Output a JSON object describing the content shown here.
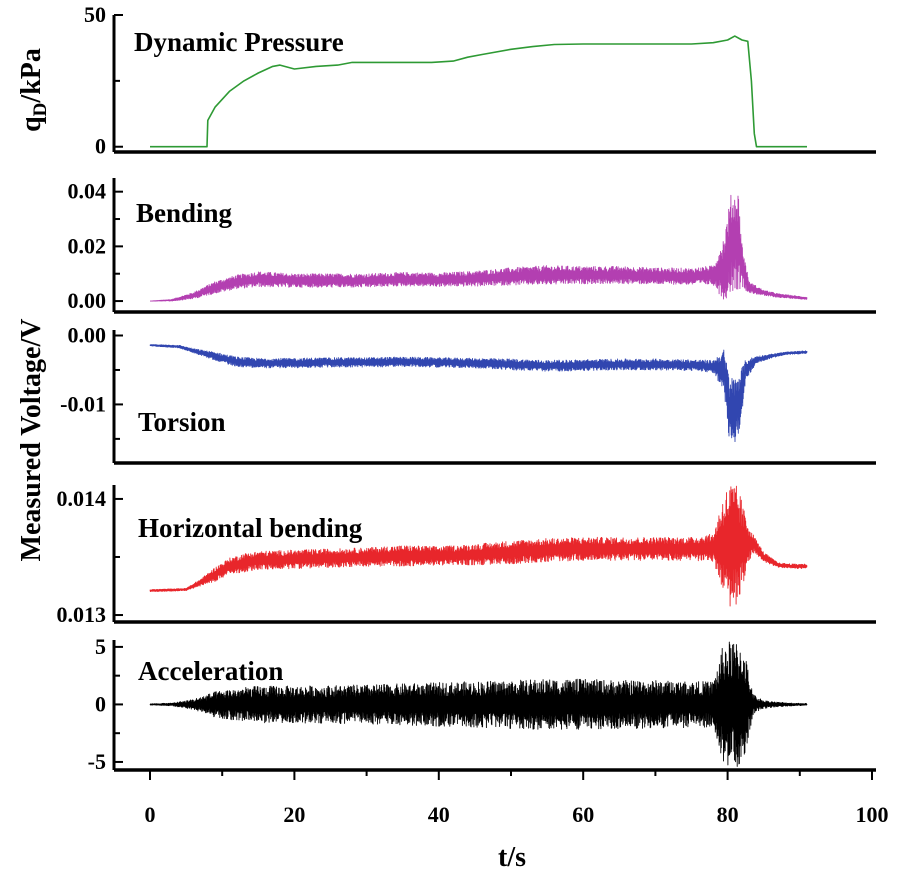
{
  "figure": {
    "ylabel_shared": "Measured Voltage/V",
    "xlabel": "t/s"
  },
  "chart_data": [
    {
      "type": "line",
      "panel": "dynamic-pressure",
      "title": "Dynamic Pressure",
      "ylabel": "q_D/kPa",
      "ylabel_main": "q",
      "ylabel_sub": "D",
      "ylabel_rest": "/kPa",
      "xlim": [
        0,
        100
      ],
      "ylim": [
        -2,
        50
      ],
      "yticks": [
        0,
        50
      ],
      "ytick_labels": [
        "0",
        "50"
      ],
      "color": "#2e9a34",
      "series": [
        {
          "name": "Dynamic Pressure",
          "x": [
            0,
            7.9,
            8,
            9,
            11,
            13,
            15,
            17,
            18,
            20,
            23,
            26,
            28,
            33,
            36,
            39,
            42,
            44,
            46,
            50,
            53,
            56,
            60,
            65,
            70,
            75,
            78,
            80,
            81,
            82,
            82.8,
            83.3,
            83.7,
            84,
            85,
            91
          ],
          "y": [
            0,
            0,
            10,
            15,
            21,
            25,
            28,
            30.5,
            31,
            29.5,
            30.5,
            31,
            32,
            32,
            32,
            32,
            32.5,
            34,
            35,
            37,
            38,
            38.8,
            39,
            39,
            39,
            39,
            39.5,
            40.5,
            42,
            40.5,
            40,
            25,
            5,
            0,
            0,
            0
          ]
        }
      ]
    },
    {
      "type": "line",
      "panel": "bending",
      "title": "Bending",
      "xlim": [
        0,
        100
      ],
      "ylim": [
        -0.004,
        0.045
      ],
      "yticks": [
        0,
        0.02,
        0.04
      ],
      "ytick_labels": [
        "0.00",
        "0.02",
        "0.04"
      ],
      "color": "#b33fb1",
      "series": [
        {
          "name": "Bending",
          "x": [
            0,
            3,
            6,
            9,
            12,
            15,
            20,
            25,
            30,
            35,
            40,
            45,
            50,
            55,
            60,
            65,
            70,
            75,
            78,
            79.5,
            80.5,
            81.5,
            82,
            83,
            85,
            87,
            91
          ],
          "y": [
            0,
            0.0003,
            0.002,
            0.005,
            0.007,
            0.008,
            0.0075,
            0.0075,
            0.0075,
            0.008,
            0.0078,
            0.0082,
            0.009,
            0.0095,
            0.0095,
            0.0095,
            0.0092,
            0.009,
            0.0095,
            0.012,
            0.0215,
            0.022,
            0.013,
            0.005,
            0.003,
            0.002,
            0.001
          ],
          "noise": [
            0,
            0.0003,
            0.0012,
            0.0022,
            0.0025,
            0.0028,
            0.0025,
            0.0025,
            0.0025,
            0.0025,
            0.0025,
            0.0028,
            0.0032,
            0.0035,
            0.0032,
            0.0032,
            0.003,
            0.003,
            0.0035,
            0.012,
            0.018,
            0.018,
            0.008,
            0.002,
            0.001,
            0.0007,
            0.0004
          ]
        }
      ]
    },
    {
      "type": "line",
      "panel": "torsion",
      "title": "Torsion",
      "xlim": [
        0,
        100
      ],
      "ylim": [
        -0.0185,
        0.0008
      ],
      "yticks": [
        0,
        -0.01
      ],
      "ytick_labels": [
        "0.00",
        "-0.01"
      ],
      "color": "#3146b0",
      "series": [
        {
          "name": "Torsion",
          "x": [
            0,
            4,
            6,
            9,
            12,
            15,
            20,
            25,
            30,
            35,
            40,
            45,
            50,
            55,
            60,
            65,
            70,
            75,
            78,
            79.5,
            80.3,
            81,
            81.8,
            82.5,
            84,
            86,
            88,
            91
          ],
          "y": [
            -0.0014,
            -0.0016,
            -0.0022,
            -0.003,
            -0.0038,
            -0.004,
            -0.004,
            -0.0039,
            -0.0039,
            -0.0038,
            -0.0039,
            -0.004,
            -0.0042,
            -0.0044,
            -0.0043,
            -0.0042,
            -0.0042,
            -0.0043,
            -0.0045,
            -0.005,
            -0.011,
            -0.011,
            -0.009,
            -0.005,
            -0.0035,
            -0.003,
            -0.0026,
            -0.0024
          ],
          "noise": [
            0.0001,
            0.0002,
            0.0003,
            0.0006,
            0.0007,
            0.0007,
            0.0007,
            0.0007,
            0.0007,
            0.0007,
            0.0007,
            0.0007,
            0.0008,
            0.0008,
            0.0008,
            0.0008,
            0.0008,
            0.0008,
            0.0009,
            0.003,
            0.005,
            0.005,
            0.004,
            0.0015,
            0.0005,
            0.0003,
            0.0002,
            0.0002
          ]
        }
      ]
    },
    {
      "type": "line",
      "panel": "horizontal-bending",
      "title": "Horizontal bending",
      "xlim": [
        0,
        100
      ],
      "ylim": [
        0.01294,
        0.01412
      ],
      "yticks": [
        0.014,
        0.013
      ],
      "ytick_labels": [
        "0.014",
        "0.013"
      ],
      "color": "#e8262b",
      "series": [
        {
          "name": "Horizontal bending",
          "x": [
            0,
            5,
            7,
            9,
            11,
            13,
            15,
            20,
            25,
            30,
            35,
            40,
            45,
            50,
            55,
            60,
            65,
            70,
            75,
            78,
            79.5,
            80.5,
            81.5,
            82.3,
            83.5,
            85,
            87,
            89,
            91
          ],
          "y": [
            0.01321,
            0.01322,
            0.01328,
            0.01335,
            0.01342,
            0.01345,
            0.01347,
            0.01348,
            0.01349,
            0.0135,
            0.01351,
            0.01351,
            0.01352,
            0.01354,
            0.01356,
            0.01357,
            0.01357,
            0.01357,
            0.01357,
            0.01358,
            0.0136,
            0.0136,
            0.0136,
            0.0136,
            0.01362,
            0.0135,
            0.01343,
            0.01342,
            0.01342
          ],
          "noise": [
            1e-05,
            1e-05,
            3e-05,
            6e-05,
            7e-05,
            8e-05,
            8e-05,
            8e-05,
            8e-05,
            8e-05,
            9e-05,
            8e-05,
            9e-05,
            0.0001,
            0.0001,
            0.0001,
            0.0001,
            0.0001,
            0.0001,
            0.00012,
            0.00045,
            0.00055,
            0.0005,
            0.0003,
            8e-05,
            4e-05,
            2e-05,
            2e-05,
            2e-05
          ]
        }
      ]
    },
    {
      "type": "line",
      "panel": "acceleration",
      "title": "Acceleration",
      "xlim": [
        0,
        100
      ],
      "ylim": [
        -5.7,
        5.6
      ],
      "yticks": [
        5,
        0,
        -5
      ],
      "ytick_labels": [
        "5",
        "0",
        "-5"
      ],
      "color": "#000000",
      "series": [
        {
          "name": "Acceleration",
          "x": [
            0,
            3,
            6,
            9,
            12,
            15,
            20,
            25,
            30,
            35,
            40,
            45,
            50,
            55,
            60,
            65,
            70,
            75,
            78,
            79.5,
            80.5,
            81.5,
            82.3,
            83.5,
            85,
            87,
            89,
            91
          ],
          "y": [
            0,
            0,
            0,
            0,
            0,
            0,
            0,
            0,
            0,
            0,
            0,
            0,
            0,
            0,
            0,
            0,
            0,
            0,
            0,
            0,
            0,
            0,
            0,
            0,
            0,
            0,
            0,
            0
          ],
          "noise": [
            0.05,
            0.12,
            0.45,
            1.1,
            1.4,
            1.6,
            1.6,
            1.65,
            1.7,
            1.8,
            1.9,
            2.0,
            2.1,
            2.2,
            2.2,
            2.1,
            2.1,
            2.0,
            2.0,
            5.5,
            5.5,
            5.5,
            5.0,
            0.9,
            0.35,
            0.2,
            0.12,
            0.08
          ]
        }
      ]
    }
  ],
  "xaxis": {
    "xlim": [
      0,
      100
    ],
    "ticks": [
      0,
      20,
      40,
      60,
      80,
      100
    ],
    "tick_labels": [
      "0",
      "20",
      "40",
      "60",
      "80",
      "100"
    ]
  }
}
